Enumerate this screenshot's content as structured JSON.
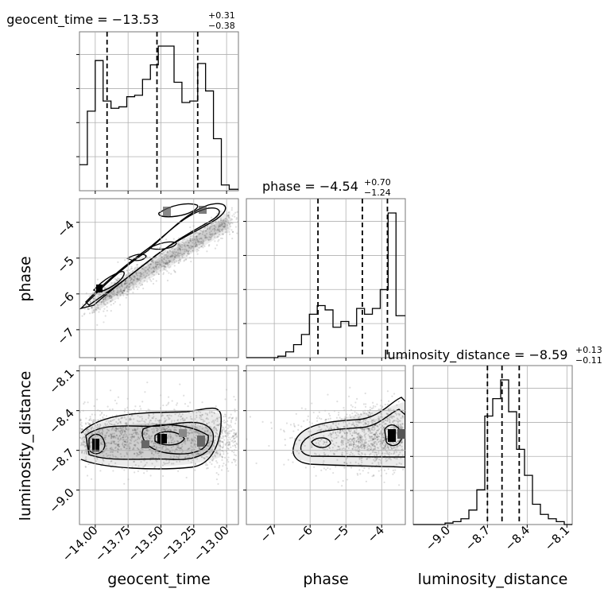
{
  "chart_data": {
    "type": "corner",
    "parameters": [
      "geocent_time",
      "phase",
      "luminosity_distance"
    ],
    "ranges": {
      "geocent_time": [
        -14.12,
        -12.91
      ],
      "phase": [
        -7.78,
        -3.34
      ],
      "luminosity_distance": [
        -9.26,
        -8.06
      ]
    },
    "ticks": {
      "geocent_time": {
        "values": [
          -14.0,
          -13.75,
          -13.5,
          -13.25,
          -13.0
        ],
        "labels": [
          "−14.00",
          "−13.75",
          "−13.50",
          "−13.25",
          "−13.00"
        ]
      },
      "phase": {
        "values": [
          -7,
          -6,
          -5,
          -4
        ],
        "labels": [
          "−7",
          "−6",
          "−5",
          "−4"
        ]
      },
      "luminosity_distance": {
        "values": [
          -9.0,
          -8.7,
          -8.4,
          -8.1
        ],
        "labels": [
          "−9.0",
          "−8.7",
          "−8.4",
          "−8.1"
        ]
      }
    },
    "axis_labels": {
      "geocent_time": "geocent_time",
      "phase": "phase",
      "luminosity_distance": "luminosity_distance"
    },
    "titles": {
      "geocent_time": {
        "name": "geocent_time",
        "median": "−13.53",
        "plus": "+0.31",
        "minus": "−0.38"
      },
      "phase": {
        "name": "phase",
        "median": "−4.54",
        "plus": "+0.70",
        "minus": "−1.24"
      },
      "luminosity_distance": {
        "name": "luminosity_distance",
        "median": "−8.59",
        "plus": "+0.13",
        "minus": "−0.11"
      }
    },
    "quantiles": {
      "geocent_time": [
        -13.91,
        -13.53,
        -13.22
      ],
      "phase": [
        -5.78,
        -4.54,
        -3.84
      ],
      "luminosity_distance": [
        -8.7,
        -8.59,
        -8.46
      ]
    },
    "histograms": {
      "geocent_time": {
        "edges": [
          -14.12,
          -14.06,
          -14.0,
          -13.94,
          -13.88,
          -13.82,
          -13.76,
          -13.7,
          -13.64,
          -13.58,
          -13.52,
          -13.46,
          -13.4,
          -13.34,
          -13.28,
          -13.22,
          -13.16,
          -13.1,
          -13.04,
          -12.98,
          -12.91
        ],
        "counts": [
          0.18,
          0.55,
          0.9,
          0.62,
          0.57,
          0.58,
          0.65,
          0.66,
          0.77,
          0.87,
          1.0,
          1.0,
          0.75,
          0.61,
          0.62,
          0.88,
          0.69,
          0.36,
          0.04,
          0.01
        ]
      },
      "phase": {
        "edges": [
          -7.78,
          -7.56,
          -7.34,
          -7.12,
          -6.9,
          -6.68,
          -6.46,
          -6.24,
          -6.02,
          -5.8,
          -5.58,
          -5.36,
          -5.14,
          -4.92,
          -4.7,
          -4.48,
          -4.26,
          -4.04,
          -3.82,
          -3.6,
          -3.34
        ],
        "counts": [
          0.0,
          0.0,
          0.0,
          0.0,
          0.01,
          0.04,
          0.09,
          0.16,
          0.3,
          0.36,
          0.33,
          0.21,
          0.25,
          0.22,
          0.34,
          0.3,
          0.34,
          0.47,
          1.0,
          0.29
        ]
      },
      "luminosity_distance": {
        "edges": [
          -9.26,
          -9.2,
          -9.14,
          -9.08,
          -9.02,
          -8.96,
          -8.9,
          -8.84,
          -8.78,
          -8.72,
          -8.66,
          -8.6,
          -8.54,
          -8.48,
          -8.42,
          -8.36,
          -8.3,
          -8.24,
          -8.18,
          -8.12,
          -8.06
        ],
        "counts": [
          0.0,
          0.0,
          0.0,
          0.0,
          0.01,
          0.02,
          0.04,
          0.1,
          0.24,
          0.75,
          0.87,
          1.0,
          0.78,
          0.52,
          0.34,
          0.14,
          0.07,
          0.04,
          0.02,
          0.0
        ]
      }
    },
    "grid": true,
    "contour_color": "#000000"
  }
}
